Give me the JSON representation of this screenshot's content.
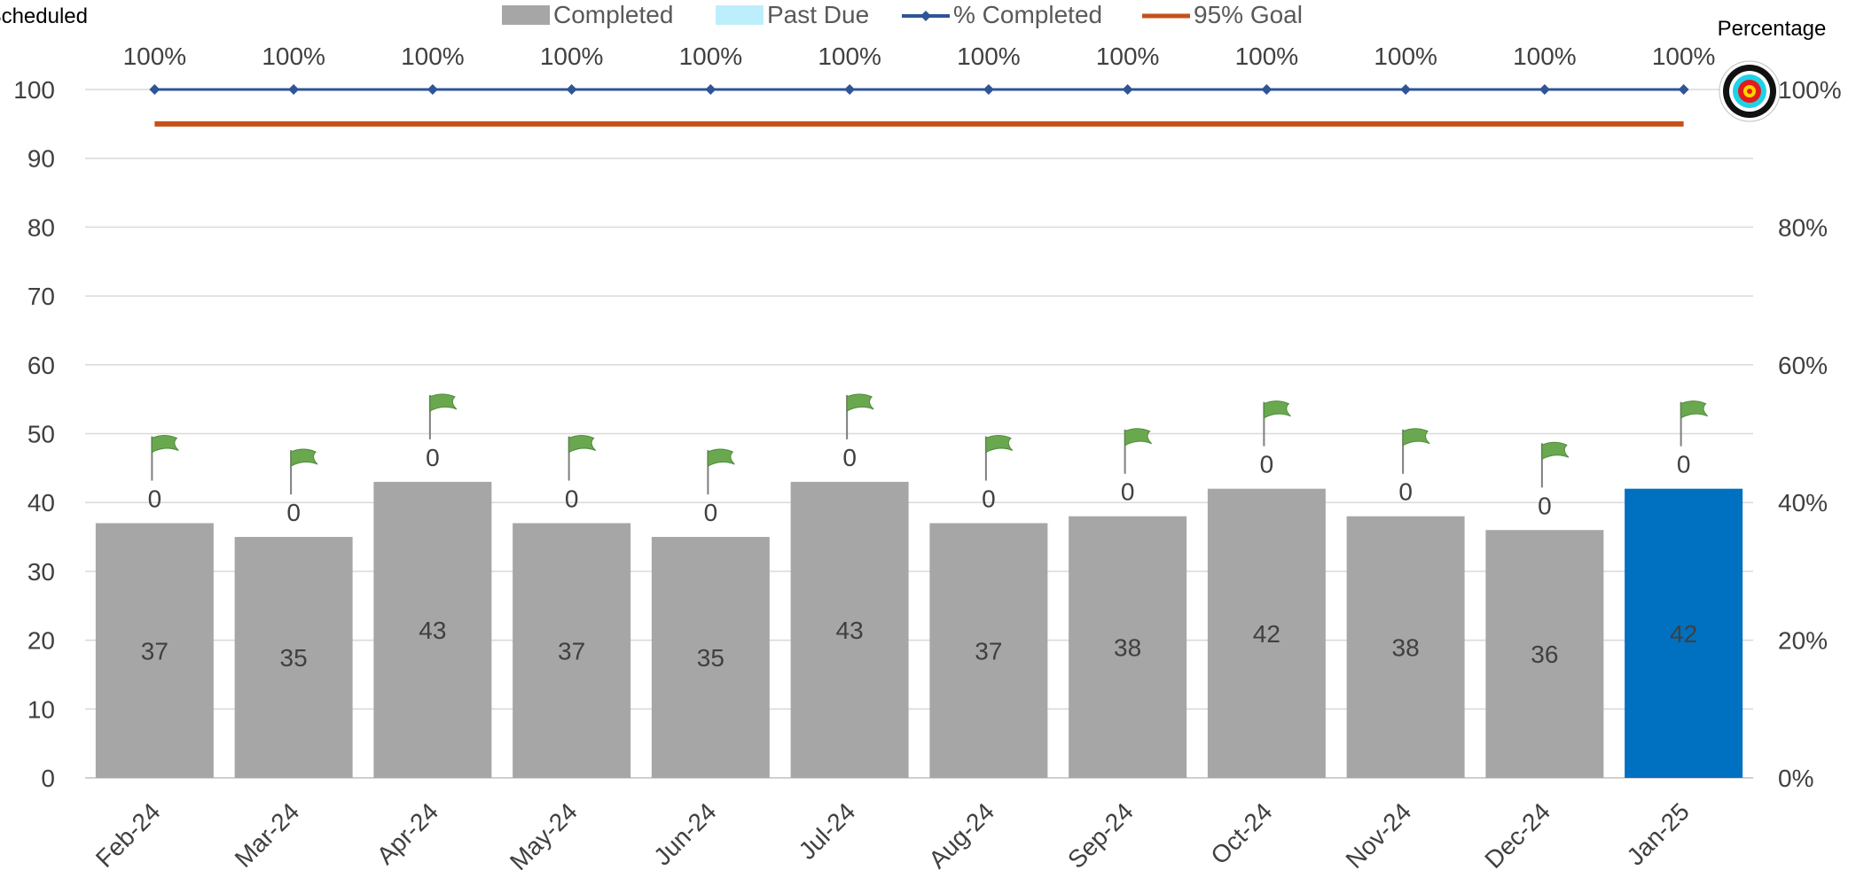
{
  "chart_data": {
    "type": "bar",
    "left_axis_title": "Scheduled",
    "right_axis_title": "Percentage",
    "categories": [
      "Feb-24",
      "Mar-24",
      "Apr-24",
      "May-24",
      "Jun-24",
      "Jul-24",
      "Aug-24",
      "Sep-24",
      "Oct-24",
      "Nov-24",
      "Dec-24",
      "Jan-25"
    ],
    "series": [
      {
        "name": "Completed",
        "kind": "bar",
        "values": [
          37,
          35,
          43,
          37,
          35,
          43,
          37,
          38,
          42,
          38,
          36,
          42
        ]
      },
      {
        "name": "Past Due",
        "kind": "bar-stacked",
        "values": [
          0,
          0,
          0,
          0,
          0,
          0,
          0,
          0,
          0,
          0,
          0,
          0
        ]
      },
      {
        "name": "% Completed",
        "kind": "line",
        "axis": "right",
        "values": [
          1,
          1,
          1,
          1,
          1,
          1,
          1,
          1,
          1,
          1,
          1,
          1
        ]
      },
      {
        "name": "95% Goal",
        "kind": "line",
        "axis": "right",
        "values": [
          0.95,
          0.95,
          0.95,
          0.95,
          0.95,
          0.95,
          0.95,
          0.95,
          0.95,
          0.95,
          0.95,
          0.95
        ]
      }
    ],
    "bar_labels": [
      "37",
      "35",
      "43",
      "37",
      "35",
      "43",
      "37",
      "38",
      "42",
      "38",
      "36",
      "42"
    ],
    "past_due_labels": [
      "0",
      "0",
      "0",
      "0",
      "0",
      "0",
      "0",
      "0",
      "0",
      "0",
      "0",
      "0"
    ],
    "percent_labels": [
      "100%",
      "100%",
      "100%",
      "100%",
      "100%",
      "100%",
      "100%",
      "100%",
      "100%",
      "100%",
      "100%",
      "100%"
    ],
    "y_left": {
      "min": 0,
      "max": 100,
      "ticks": [
        "0",
        "10",
        "20",
        "30",
        "40",
        "50",
        "60",
        "70",
        "80",
        "90",
        "100"
      ]
    },
    "y_right": {
      "min": 0,
      "max": 1,
      "ticks": [
        "0%",
        "20%",
        "40%",
        "60%",
        "80%",
        "100%"
      ]
    },
    "legend": {
      "placement": "top",
      "items": [
        "Completed",
        "Past Due",
        "% Completed",
        "95% Goal"
      ]
    },
    "highlight_index": 11,
    "grid": true,
    "colors": {
      "completed": "#a6a6a6",
      "highlight": "#0070c0",
      "past_due": "#bdeefb",
      "percent_line": "#2f5597",
      "goal_line": "#c5511a",
      "flag": "#6aa84f",
      "grid": "#d9d9d9"
    },
    "icons": {
      "bar_marker": "flag-icon",
      "goal_marker": "target-icon"
    }
  }
}
